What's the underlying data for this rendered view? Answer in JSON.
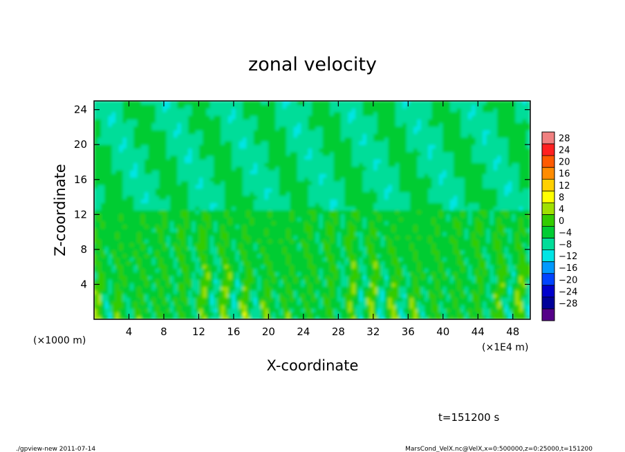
{
  "chart_data": {
    "type": "heatmap",
    "title": "zonal velocity",
    "xlabel": "X-coordinate",
    "ylabel": "Z-coordinate",
    "x_units_label": "(×1E4 m)",
    "y_units_label": "(×1000 m)",
    "xlim": [
      0,
      50
    ],
    "ylim": [
      0,
      25
    ],
    "x_ticks": [
      4,
      8,
      12,
      16,
      20,
      24,
      28,
      32,
      36,
      40,
      44,
      48
    ],
    "y_ticks": [
      4,
      8,
      12,
      16,
      20,
      24
    ],
    "colorbar": {
      "levels": [
        28,
        24,
        20,
        16,
        12,
        8,
        4,
        0,
        -4,
        -8,
        -12,
        -16,
        -20,
        -24,
        -28
      ],
      "colors": [
        "#f08080",
        "#ff2020",
        "#ff5a00",
        "#ff8c00",
        "#ffd000",
        "#ffff00",
        "#a0e000",
        "#33cc00",
        "#00cc33",
        "#00dd99",
        "#00e5e5",
        "#0099ff",
        "#0044ff",
        "#0000cc",
        "#000099",
        "#550088"
      ]
    },
    "field_description_levels": {
      "upper_layer_z_range": [
        12,
        25
      ],
      "upper_layer_typical_range": [
        -8,
        4
      ],
      "lower_layer_z_range": [
        0,
        8
      ],
      "lower_layer_typical_range": [
        -12,
        12
      ]
    }
  },
  "annotations": {
    "time": "t=151200 s",
    "footer_left": "./gpview-new  2011-07-14",
    "footer_right": "MarsCond_VelX.nc@VelX,x=0:500000,z=0:25000,t=151200"
  }
}
